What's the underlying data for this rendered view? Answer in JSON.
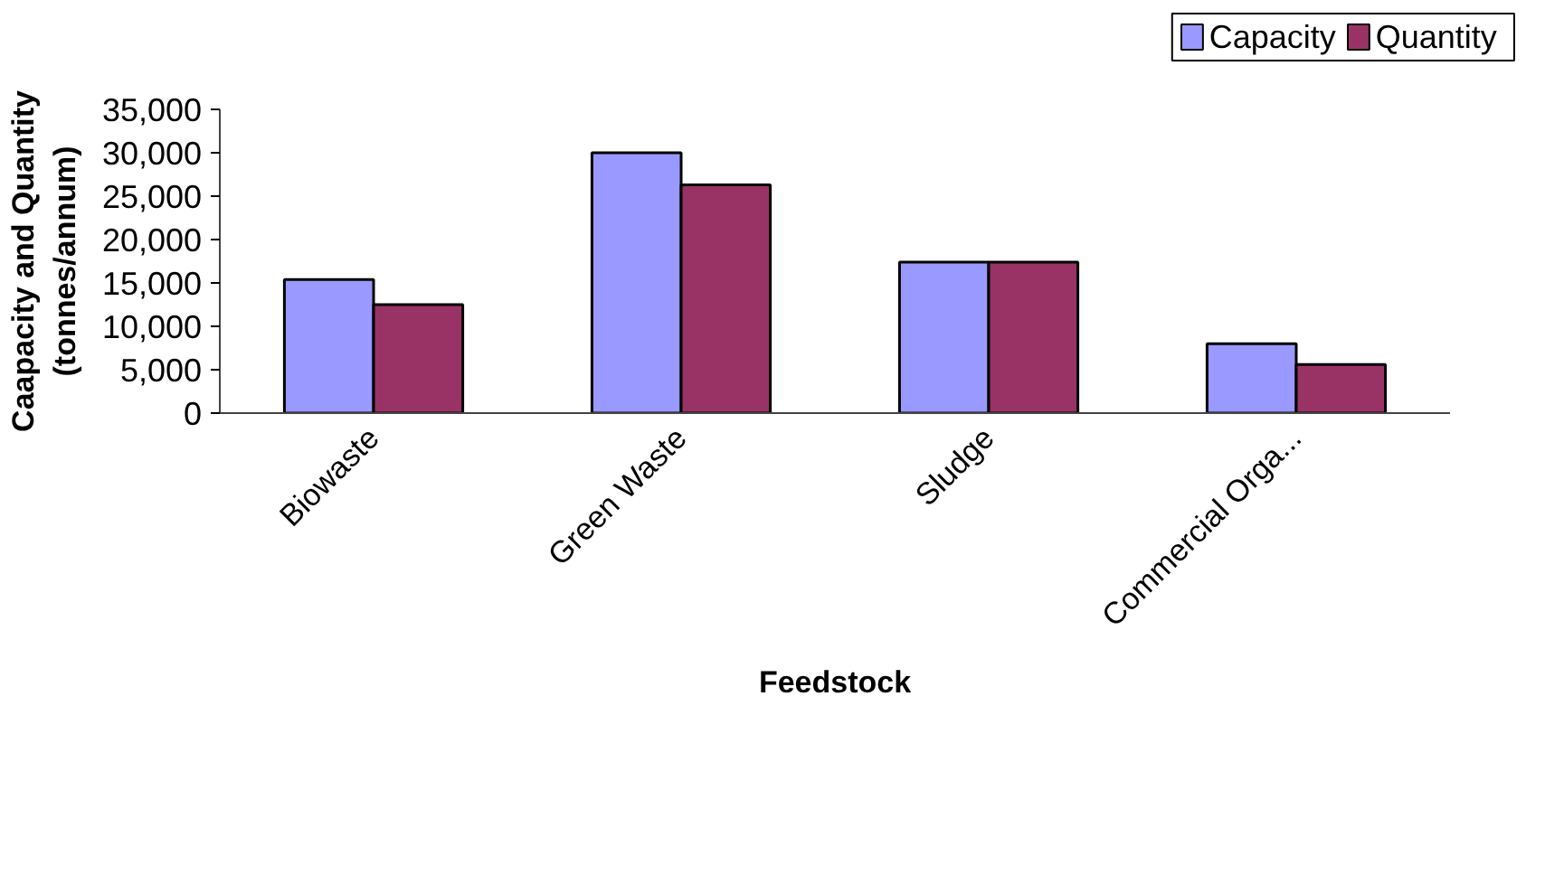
{
  "chart_data": {
    "type": "bar",
    "xlabel": "Feedstock",
    "ylabel": "Caapacity and Quantity\n(tonnes/annum)",
    "categories": [
      "Biowaste",
      "Green Waste",
      "Sludge",
      "Commercial Orga..."
    ],
    "series": [
      {
        "name": "Capacity",
        "color": "#9999ff",
        "values": [
          15400,
          30000,
          17400,
          8000
        ]
      },
      {
        "name": "Quantity",
        "color": "#993366",
        "values": [
          12500,
          26300,
          17400,
          5600
        ]
      }
    ],
    "ylim": [
      0,
      35000
    ],
    "yticks": [
      {
        "value": 0,
        "label": "0"
      },
      {
        "value": 5000,
        "label": "5,000"
      },
      {
        "value": 10000,
        "label": "10,000"
      },
      {
        "value": 15000,
        "label": "15,000"
      },
      {
        "value": 20000,
        "label": "20,000"
      },
      {
        "value": 25000,
        "label": "25,000"
      },
      {
        "value": 30000,
        "label": "30,000"
      },
      {
        "value": 35000,
        "label": "35,000"
      }
    ],
    "grid": false,
    "legend": "top right"
  }
}
